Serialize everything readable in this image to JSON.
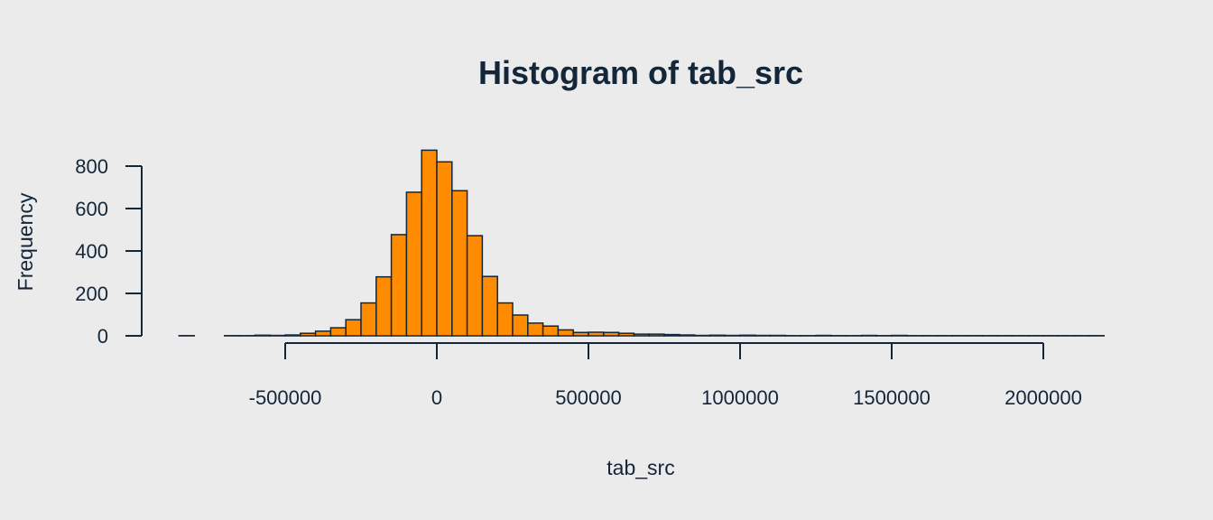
{
  "colors": {
    "background": "#ebebeb",
    "bar_fill": "#ff8c00",
    "ink": "#13263a"
  },
  "chart_data": {
    "type": "bar",
    "title": "Histogram of tab_src",
    "xlabel": "tab_src",
    "ylabel": "Frequency",
    "bin_width": 50000,
    "xlim": [
      -850000,
      2200000
    ],
    "ylim": [
      0,
      880
    ],
    "x_ticks": [
      -500000,
      0,
      500000,
      1000000,
      1500000,
      2000000
    ],
    "x_tick_labels": [
      "-500000",
      "0",
      "500000",
      "1000000",
      "1500000",
      "2000000"
    ],
    "y_ticks": [
      0,
      200,
      400,
      600,
      800
    ],
    "y_tick_labels": [
      "0",
      "200",
      "400",
      "600",
      "800"
    ],
    "grid": false,
    "bin_starts": [
      -850000,
      -800000,
      -750000,
      -700000,
      -650000,
      -600000,
      -550000,
      -500000,
      -450000,
      -400000,
      -350000,
      -300000,
      -250000,
      -200000,
      -150000,
      -100000,
      -50000,
      0,
      50000,
      100000,
      150000,
      200000,
      250000,
      300000,
      350000,
      400000,
      450000,
      500000,
      550000,
      600000,
      650000,
      700000,
      750000,
      800000,
      850000,
      900000,
      950000,
      1000000,
      1050000,
      1100000,
      1150000,
      1200000,
      1250000,
      1300000,
      1350000,
      1400000,
      1450000,
      1500000,
      1550000,
      1600000,
      1650000,
      1700000,
      1750000,
      1800000,
      1850000,
      1900000,
      1950000,
      2000000,
      2050000,
      2100000,
      2150000
    ],
    "values": [
      1,
      0,
      0,
      1,
      1,
      3,
      2,
      4,
      12,
      22,
      38,
      76,
      155,
      278,
      477,
      677,
      875,
      820,
      684,
      472,
      280,
      155,
      98,
      60,
      46,
      28,
      16,
      17,
      16,
      12,
      8,
      8,
      6,
      4,
      2,
      3,
      2,
      3,
      2,
      2,
      1,
      1,
      2,
      1,
      1,
      2,
      1,
      2,
      1,
      1,
      1,
      1,
      1,
      1,
      1,
      1,
      1,
      1,
      1,
      1,
      1
    ]
  }
}
